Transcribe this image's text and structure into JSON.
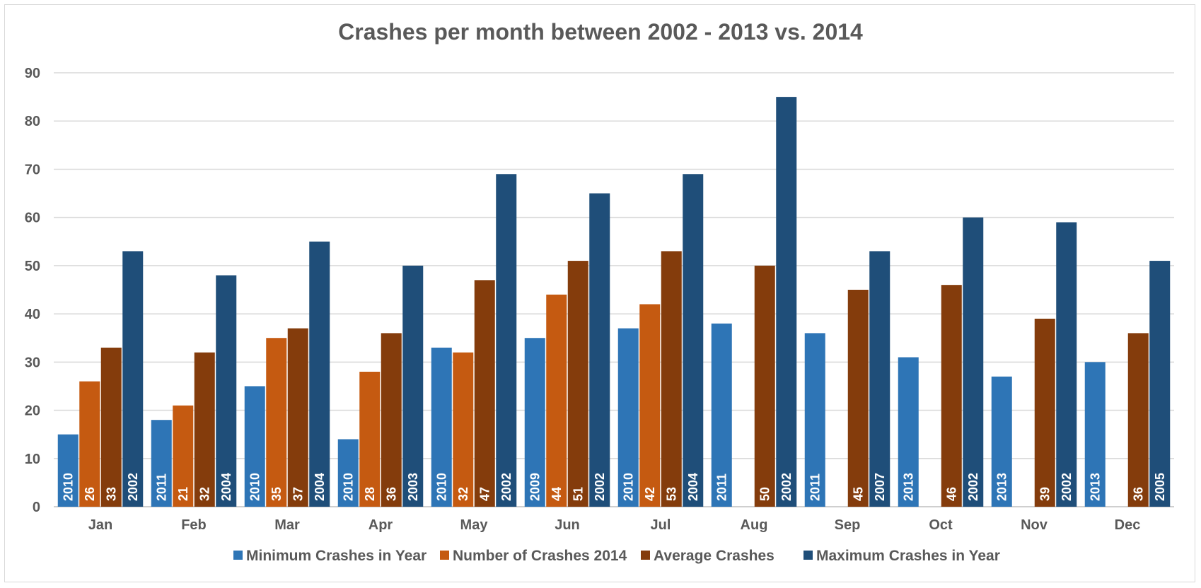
{
  "chart_data": {
    "type": "bar",
    "title": "Crashes per month between 2002 - 2013 vs. 2014",
    "xlabel": "",
    "ylabel": "",
    "ylim": [
      0,
      90
    ],
    "yticks": [
      0,
      10,
      20,
      30,
      40,
      50,
      60,
      70,
      80,
      90
    ],
    "grid": true,
    "legend_position": "bottom",
    "categories": [
      "Jan",
      "Feb",
      "Mar",
      "Apr",
      "May",
      "Jun",
      "Jul",
      "Aug",
      "Sep",
      "Oct",
      "Nov",
      "Dec"
    ],
    "series": [
      {
        "name": "Minimum Crashes in Year",
        "color": "#2e75b6",
        "values": [
          15,
          18,
          25,
          14,
          33,
          35,
          37,
          38,
          36,
          31,
          27,
          30
        ],
        "data_labels": [
          "2010",
          "2011",
          "2010",
          "2010",
          "2010",
          "2009",
          "2010",
          "2011",
          "2011",
          "2013",
          "2013",
          "2013"
        ]
      },
      {
        "name": "Number of Crashes 2014",
        "color": "#c55a11",
        "values": [
          26,
          21,
          35,
          28,
          32,
          44,
          42,
          null,
          null,
          null,
          null,
          null
        ],
        "data_labels": [
          "26",
          "21",
          "35",
          "28",
          "32",
          "44",
          "42",
          "",
          "",
          "",
          "",
          ""
        ]
      },
      {
        "name": "Average Crashes",
        "color": "#843c0c",
        "values": [
          33,
          32,
          37,
          36,
          47,
          51,
          53,
          50,
          45,
          46,
          39,
          36
        ],
        "data_labels": [
          "33",
          "32",
          "37",
          "36",
          "47",
          "51",
          "53",
          "50",
          "45",
          "46",
          "39",
          "36"
        ]
      },
      {
        "name": "Maximum Crashes in Year",
        "color": "#1f4e79",
        "values": [
          53,
          48,
          55,
          50,
          69,
          65,
          69,
          85,
          53,
          60,
          59,
          51
        ],
        "data_labels": [
          "2002",
          "2004",
          "2004",
          "2003",
          "2002",
          "2002",
          "2004",
          "2002",
          "2007",
          "2002",
          "2002",
          "2005"
        ]
      }
    ]
  }
}
